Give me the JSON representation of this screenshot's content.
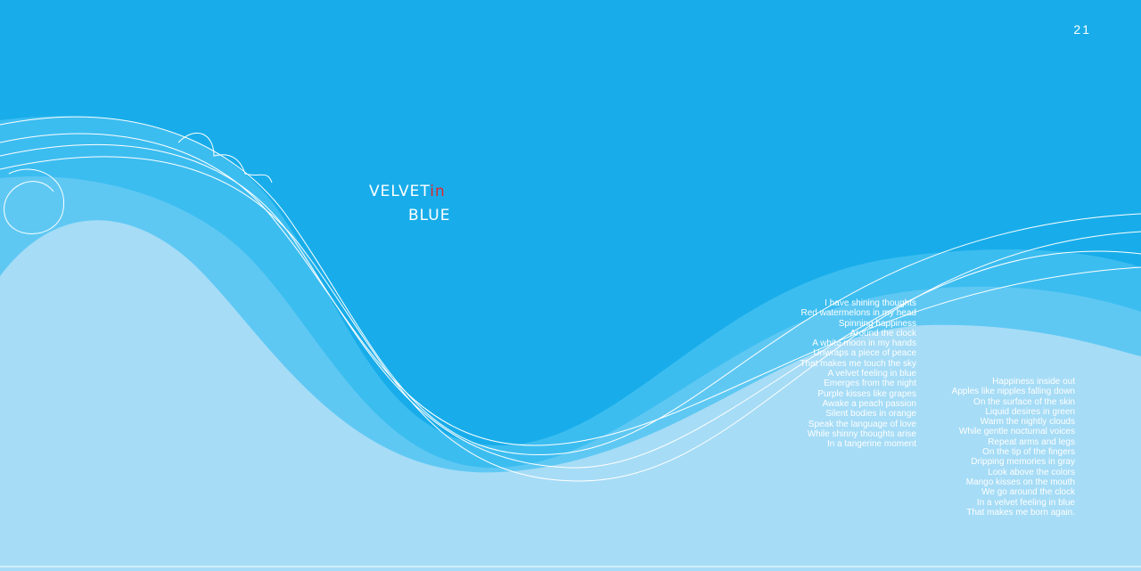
{
  "page_number": "21",
  "title": {
    "word1": "VELVET",
    "word2": "in",
    "word3": "BLUE"
  },
  "poems": [
    [
      "I have shining thoughts",
      "Red watermelons in my head",
      "Spinning happiness",
      "Around the clock",
      "A white moon in my hands",
      "Unwraps a piece of peace",
      "That makes me touch the sky",
      "A velvet feeling in blue",
      "Emerges from the night",
      "Purple kisses like grapes",
      "Awake a peach passion",
      "Silent bodies in orange",
      "Speak the language of love",
      "While shinny thoughts arise",
      "In a tangerine moment"
    ],
    [
      "Happiness inside out",
      "Apples like nipples falling down",
      "On the surface of the skin",
      "Liquid desires in green",
      "Warm the nightly clouds",
      "While gentle nocturnal voices",
      "Repeat arms and legs",
      "On the tip of the fingers",
      "Dripping memories in gray",
      "Look above the colors",
      "Mango kisses on the mouth",
      "We go around the clock",
      "In a velvet feeling in blue",
      "That makes me born again."
    ]
  ]
}
